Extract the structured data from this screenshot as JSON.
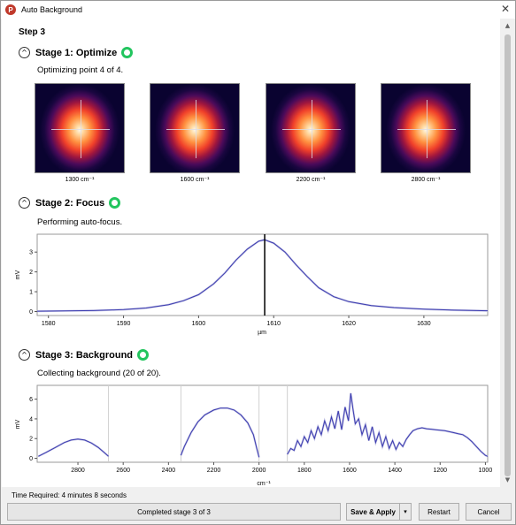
{
  "window": {
    "title": "Auto Background",
    "app_icon_letter": "P",
    "close_symbol": "✕"
  },
  "step_title": "Step 3",
  "stages": [
    {
      "title": "Stage 1:  Optimize",
      "description": "Optimizing point 4 of 4.",
      "collapse_symbol": "^",
      "status": "complete"
    },
    {
      "title": "Stage 2:  Focus",
      "description": "Performing auto-focus.",
      "collapse_symbol": "^",
      "status": "complete"
    },
    {
      "title": "Stage 3:  Background",
      "description": "Collecting background (20 of 20).",
      "collapse_symbol": "^",
      "status": "complete"
    }
  ],
  "thumbnails": [
    {
      "label": "1300 cm⁻¹"
    },
    {
      "label": "1600 cm⁻¹"
    },
    {
      "label": "2200 cm⁻¹"
    },
    {
      "label": "2800 cm⁻¹"
    }
  ],
  "colors": {
    "accent_green": "#22c55e",
    "line_blue": "#3b3bb0",
    "marker": "#000000"
  },
  "chart_data": [
    {
      "type": "line",
      "title": "",
      "xlabel": "µm",
      "ylabel": "mV",
      "xlim": [
        1578.5,
        1638.5
      ],
      "ylim": [
        -0.2,
        3.9
      ],
      "xticks": [
        1580,
        1590,
        1600,
        1610,
        1620,
        1630
      ],
      "yticks": [
        0,
        1,
        2,
        3
      ],
      "grid": false,
      "marker_x": 1608.8,
      "series": [
        {
          "x": [
            1578.5,
            1582,
            1586,
            1590,
            1593,
            1596,
            1598,
            1600,
            1602,
            1603.5,
            1605,
            1606.5,
            1608,
            1608.8,
            1610,
            1611.5,
            1613,
            1614.5,
            1616,
            1618,
            1620,
            1623,
            1626,
            1630,
            1634,
            1638.5
          ],
          "y": [
            0.02,
            0.03,
            0.05,
            0.1,
            0.18,
            0.35,
            0.55,
            0.85,
            1.4,
            1.95,
            2.6,
            3.15,
            3.55,
            3.62,
            3.45,
            3.0,
            2.35,
            1.75,
            1.2,
            0.75,
            0.5,
            0.3,
            0.2,
            0.12,
            0.07,
            0.04
          ]
        }
      ]
    },
    {
      "type": "line",
      "title": "",
      "xlabel": "cm⁻¹",
      "ylabel": "mV",
      "xlim": [
        2980,
        990
      ],
      "ylim": [
        -0.4,
        7.4
      ],
      "xticks": [
        2800,
        2600,
        2400,
        2200,
        2000,
        1800,
        1600,
        1400,
        1200,
        1000
      ],
      "yticks": [
        0,
        2,
        4,
        6
      ],
      "grid": false,
      "series": [
        {
          "name": "",
          "x": [
            2975,
            2940,
            2900,
            2860,
            2830,
            2800,
            2770,
            2740,
            2710,
            2685,
            2665
          ],
          "y": [
            0.2,
            0.6,
            1.1,
            1.6,
            1.85,
            1.95,
            1.85,
            1.55,
            1.1,
            0.6,
            0.2
          ]
        },
        {
          "name": "",
          "x": [
            2345,
            2330,
            2300,
            2270,
            2240,
            2200,
            2170,
            2140,
            2110,
            2080,
            2050,
            2025,
            2010,
            2000
          ],
          "y": [
            0.3,
            1.2,
            2.6,
            3.7,
            4.4,
            4.9,
            5.1,
            5.1,
            4.9,
            4.4,
            3.6,
            2.4,
            1.0,
            0.1
          ]
        },
        {
          "name": "",
          "x": [
            1875,
            1860,
            1845,
            1830,
            1815,
            1800,
            1785,
            1770,
            1755,
            1740,
            1725,
            1710,
            1695,
            1680,
            1665,
            1650,
            1635,
            1620,
            1605,
            1595,
            1585,
            1575,
            1560,
            1545,
            1530,
            1515,
            1500,
            1485,
            1470,
            1455,
            1440,
            1425,
            1410,
            1395,
            1380,
            1365,
            1350,
            1335,
            1320,
            1300,
            1280,
            1260,
            1240,
            1220,
            1200,
            1180,
            1160,
            1140,
            1120,
            1100,
            1080,
            1060,
            1040,
            1020,
            1000,
            990
          ],
          "y": [
            0.4,
            1.0,
            0.8,
            1.8,
            1.2,
            2.2,
            1.6,
            2.8,
            2.0,
            3.2,
            2.4,
            3.8,
            2.8,
            4.2,
            3.0,
            4.8,
            2.9,
            5.2,
            3.8,
            6.6,
            5.0,
            3.5,
            4.0,
            2.4,
            3.4,
            1.8,
            3.2,
            1.6,
            2.6,
            1.2,
            2.2,
            1.0,
            1.8,
            0.9,
            1.6,
            1.2,
            1.9,
            2.4,
            2.8,
            3.0,
            3.1,
            3.0,
            2.95,
            2.9,
            2.85,
            2.8,
            2.7,
            2.6,
            2.5,
            2.4,
            2.1,
            1.7,
            1.2,
            0.7,
            0.3,
            0.2
          ]
        }
      ],
      "separators_x": [
        2665,
        2345,
        2000,
        1875
      ]
    }
  ],
  "footer": {
    "time_required": "Time Required: 4 minutes 8 seconds",
    "status": "Completed stage 3 of 3",
    "save_apply_label": "Save & Apply",
    "dropdown_symbol": "▾",
    "restart_label": "Restart",
    "cancel_label": "Cancel"
  },
  "scrollbar": {
    "up_symbol": "▲",
    "down_symbol": "▼"
  }
}
